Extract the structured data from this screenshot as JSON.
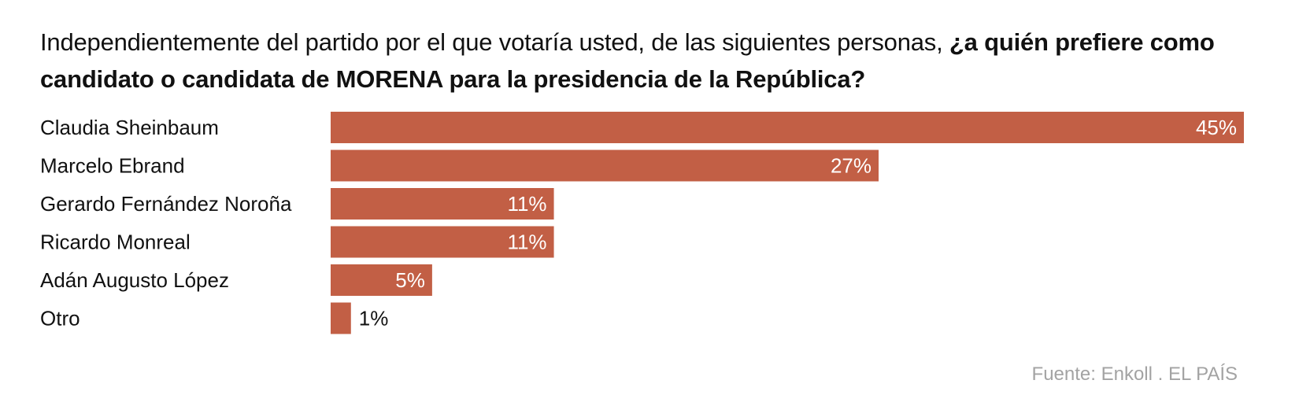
{
  "title": {
    "regular": "Independientemente del partido por el que votaría usted, de las siguientes personas, ",
    "bold": "¿a quién prefiere como candidato o candidata de MORENA para la presidencia de la República?"
  },
  "source": "Fuente: Enkoll . EL PAÍS",
  "chart_data": {
    "type": "bar",
    "orientation": "horizontal",
    "title": "Independientemente del partido por el que votaría usted, de las siguientes personas, ¿a quién prefiere como candidato o candidata de MORENA para la presidencia de la República?",
    "categories": [
      "Claudia Sheinbaum",
      "Marcelo Ebrand",
      "Gerardo Fernández Noroña",
      "Ricardo Monreal",
      "Adán Augusto López",
      "Otro"
    ],
    "values": [
      45,
      27,
      11,
      11,
      5,
      1
    ],
    "value_labels": [
      "45%",
      "27%",
      "11%",
      "11%",
      "5%",
      "1%"
    ],
    "xlim": [
      0,
      45
    ],
    "grid": false,
    "legend": "none",
    "colors": {
      "bar": "#c25f45",
      "label_inside": "#ffffff",
      "label_outside": "#111111",
      "source_text": "#a3a3a3"
    }
  }
}
